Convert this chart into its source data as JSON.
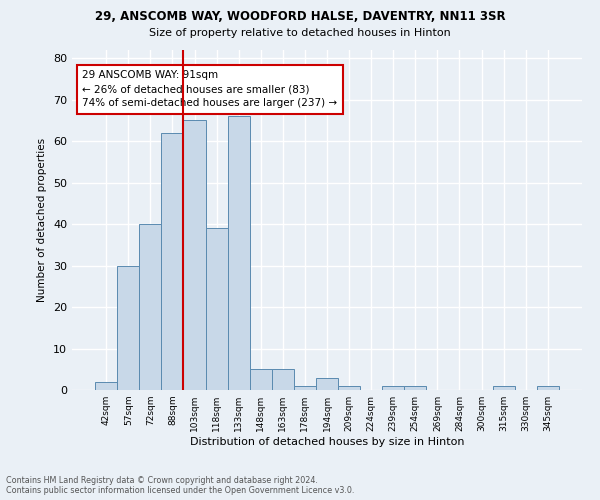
{
  "title1": "29, ANSCOMB WAY, WOODFORD HALSE, DAVENTRY, NN11 3SR",
  "title2": "Size of property relative to detached houses in Hinton",
  "xlabel": "Distribution of detached houses by size in Hinton",
  "ylabel": "Number of detached properties",
  "footer1": "Contains HM Land Registry data © Crown copyright and database right 2024.",
  "footer2": "Contains public sector information licensed under the Open Government Licence v3.0.",
  "bar_labels": [
    "42sqm",
    "57sqm",
    "72sqm",
    "88sqm",
    "103sqm",
    "118sqm",
    "133sqm",
    "148sqm",
    "163sqm",
    "178sqm",
    "194sqm",
    "209sqm",
    "224sqm",
    "239sqm",
    "254sqm",
    "269sqm",
    "284sqm",
    "300sqm",
    "315sqm",
    "330sqm",
    "345sqm"
  ],
  "bar_values": [
    2,
    30,
    40,
    62,
    65,
    39,
    66,
    5,
    5,
    1,
    3,
    1,
    0,
    1,
    1,
    0,
    0,
    0,
    1,
    0,
    1
  ],
  "bar_color": "#c8d8e8",
  "bar_edge_color": "#5a8ab0",
  "ylim": [
    0,
    82
  ],
  "yticks": [
    0,
    10,
    20,
    30,
    40,
    50,
    60,
    70,
    80
  ],
  "vline_x": 3.5,
  "vline_color": "#cc0000",
  "annotation_text": "29 ANSCOMB WAY: 91sqm\n← 26% of detached houses are smaller (83)\n74% of semi-detached houses are larger (237) →",
  "annotation_box_color": "#ffffff",
  "annotation_box_edge": "#cc0000",
  "background_color": "#eaf0f6",
  "grid_color": "#ffffff"
}
